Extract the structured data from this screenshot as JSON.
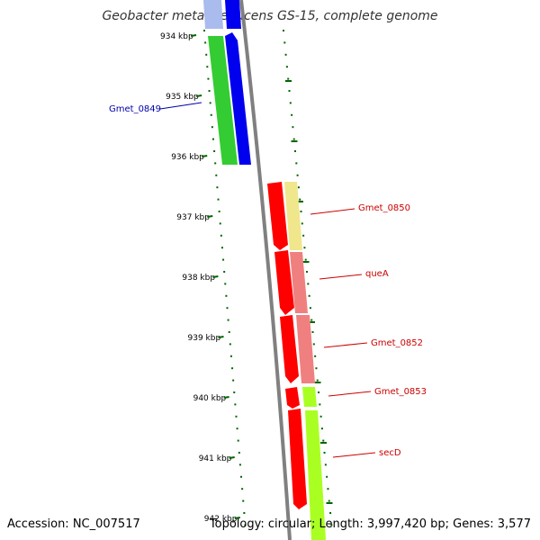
{
  "title": "Geobacter metallireducens GS-15, complete genome",
  "accession": "Accession: NC_007517",
  "topology": "Topology: circular; Length: 3,997,420 bp; Genes: 3,577",
  "kbp_ticks": [
    "934 kbp",
    "935 kbp",
    "936 kbp",
    "937 kbp",
    "938 kbp",
    "939 kbp",
    "940 kbp",
    "941 kbp",
    "942 kbp"
  ],
  "genes": [
    {
      "name": "Gmet_0849",
      "color": "#0000aa"
    },
    {
      "name": "Gmet_0850",
      "color": "#cc0000"
    },
    {
      "name": "queA",
      "color": "#cc0000"
    },
    {
      "name": "Gmet_0852",
      "color": "#cc0000"
    },
    {
      "name": "Gmet_0853",
      "color": "#cc0000"
    },
    {
      "name": "secD",
      "color": "#cc0000"
    }
  ],
  "colors": {
    "backbone": "#808080",
    "tick_dots": "#006600",
    "cds_green": "#33cc33",
    "cds_blue": "#0000ee",
    "cds_red": "#ff0000",
    "cds_yellow": "#f0e68c",
    "cds_salmon": "#f08080",
    "cds_lime": "#aaff22"
  }
}
